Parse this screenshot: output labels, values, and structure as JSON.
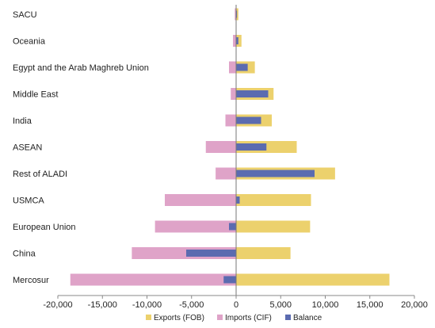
{
  "chart_data": {
    "type": "bar",
    "orientation": "horizontal",
    "categories": [
      "SACU",
      "Oceania",
      "Egypt and the Arab Maghreb Union",
      "Middle East",
      "India",
      "ASEAN",
      "Rest of ALADI",
      "USMCA",
      "European Union",
      "China",
      "Mercosur"
    ],
    "series": [
      {
        "name": "Exports (FOB)",
        "color": "#ecd16d",
        "values": [
          250,
          600,
          2100,
          4200,
          4000,
          6800,
          11100,
          8400,
          8300,
          6100,
          17200
        ]
      },
      {
        "name": "Imports (CIF)",
        "color": "#dfa3c8",
        "values": [
          -150,
          -350,
          -800,
          -600,
          -1200,
          -3400,
          -2300,
          -8000,
          -9100,
          -11700,
          -18600
        ]
      },
      {
        "name": "Balance",
        "color": "#5b6bb0",
        "values": [
          100,
          250,
          1300,
          3600,
          2800,
          3400,
          8800,
          400,
          -800,
          -5600,
          -1400
        ]
      }
    ],
    "xlim": [
      -20000,
      20000
    ],
    "xticks": [
      "-20,000",
      "-15,000",
      "-10,000",
      "-5,000",
      "0",
      "5,000",
      "10,000",
      "15,000",
      "20,000"
    ],
    "legend_position": "bottom",
    "grid": false
  }
}
